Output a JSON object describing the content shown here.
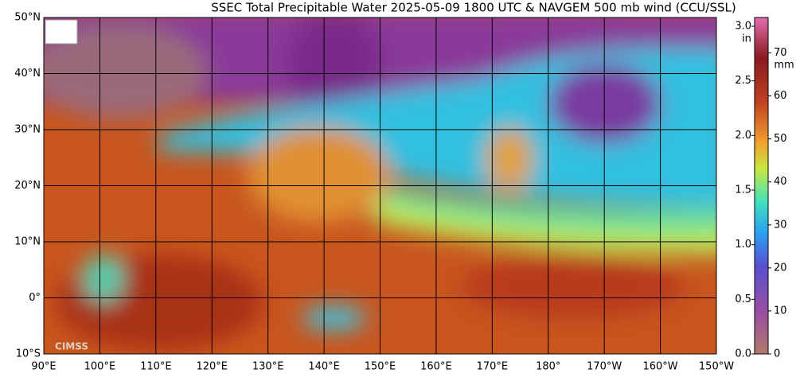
{
  "title": "SSEC Total Precipitable Water  2025-05-09 1800 UTC & NAVGEM 500 mb wind (CCU/SSL)",
  "lat_labels": [
    "50°N",
    "40°N",
    "30°N",
    "20°N",
    "10°N",
    "0°",
    "10°S"
  ],
  "lon_labels": [
    "90°E",
    "100°E",
    "110°E",
    "120°E",
    "130°E",
    "140°E",
    "150°E",
    "160°E",
    "170°E",
    "180°",
    "170°W",
    "160°W",
    "150°W"
  ],
  "colorbar": {
    "inch_unit": "in",
    "mm_unit": "mm",
    "inch_max": 3.0,
    "inch_ticks": [
      {
        "value": 3.0,
        "label": "3.0"
      },
      {
        "value": 2.5,
        "label": "2.5"
      },
      {
        "value": 2.0,
        "label": "2.0"
      },
      {
        "value": 1.5,
        "label": "1.5"
      },
      {
        "value": 1.0,
        "label": "1.0"
      },
      {
        "value": 0.5,
        "label": "0.5"
      },
      {
        "value": 0.0,
        "label": "0.0"
      }
    ],
    "mm_ticks": [
      70,
      60,
      50,
      40,
      30,
      20,
      10,
      0
    ]
  },
  "logo_text": "CIMSS"
}
